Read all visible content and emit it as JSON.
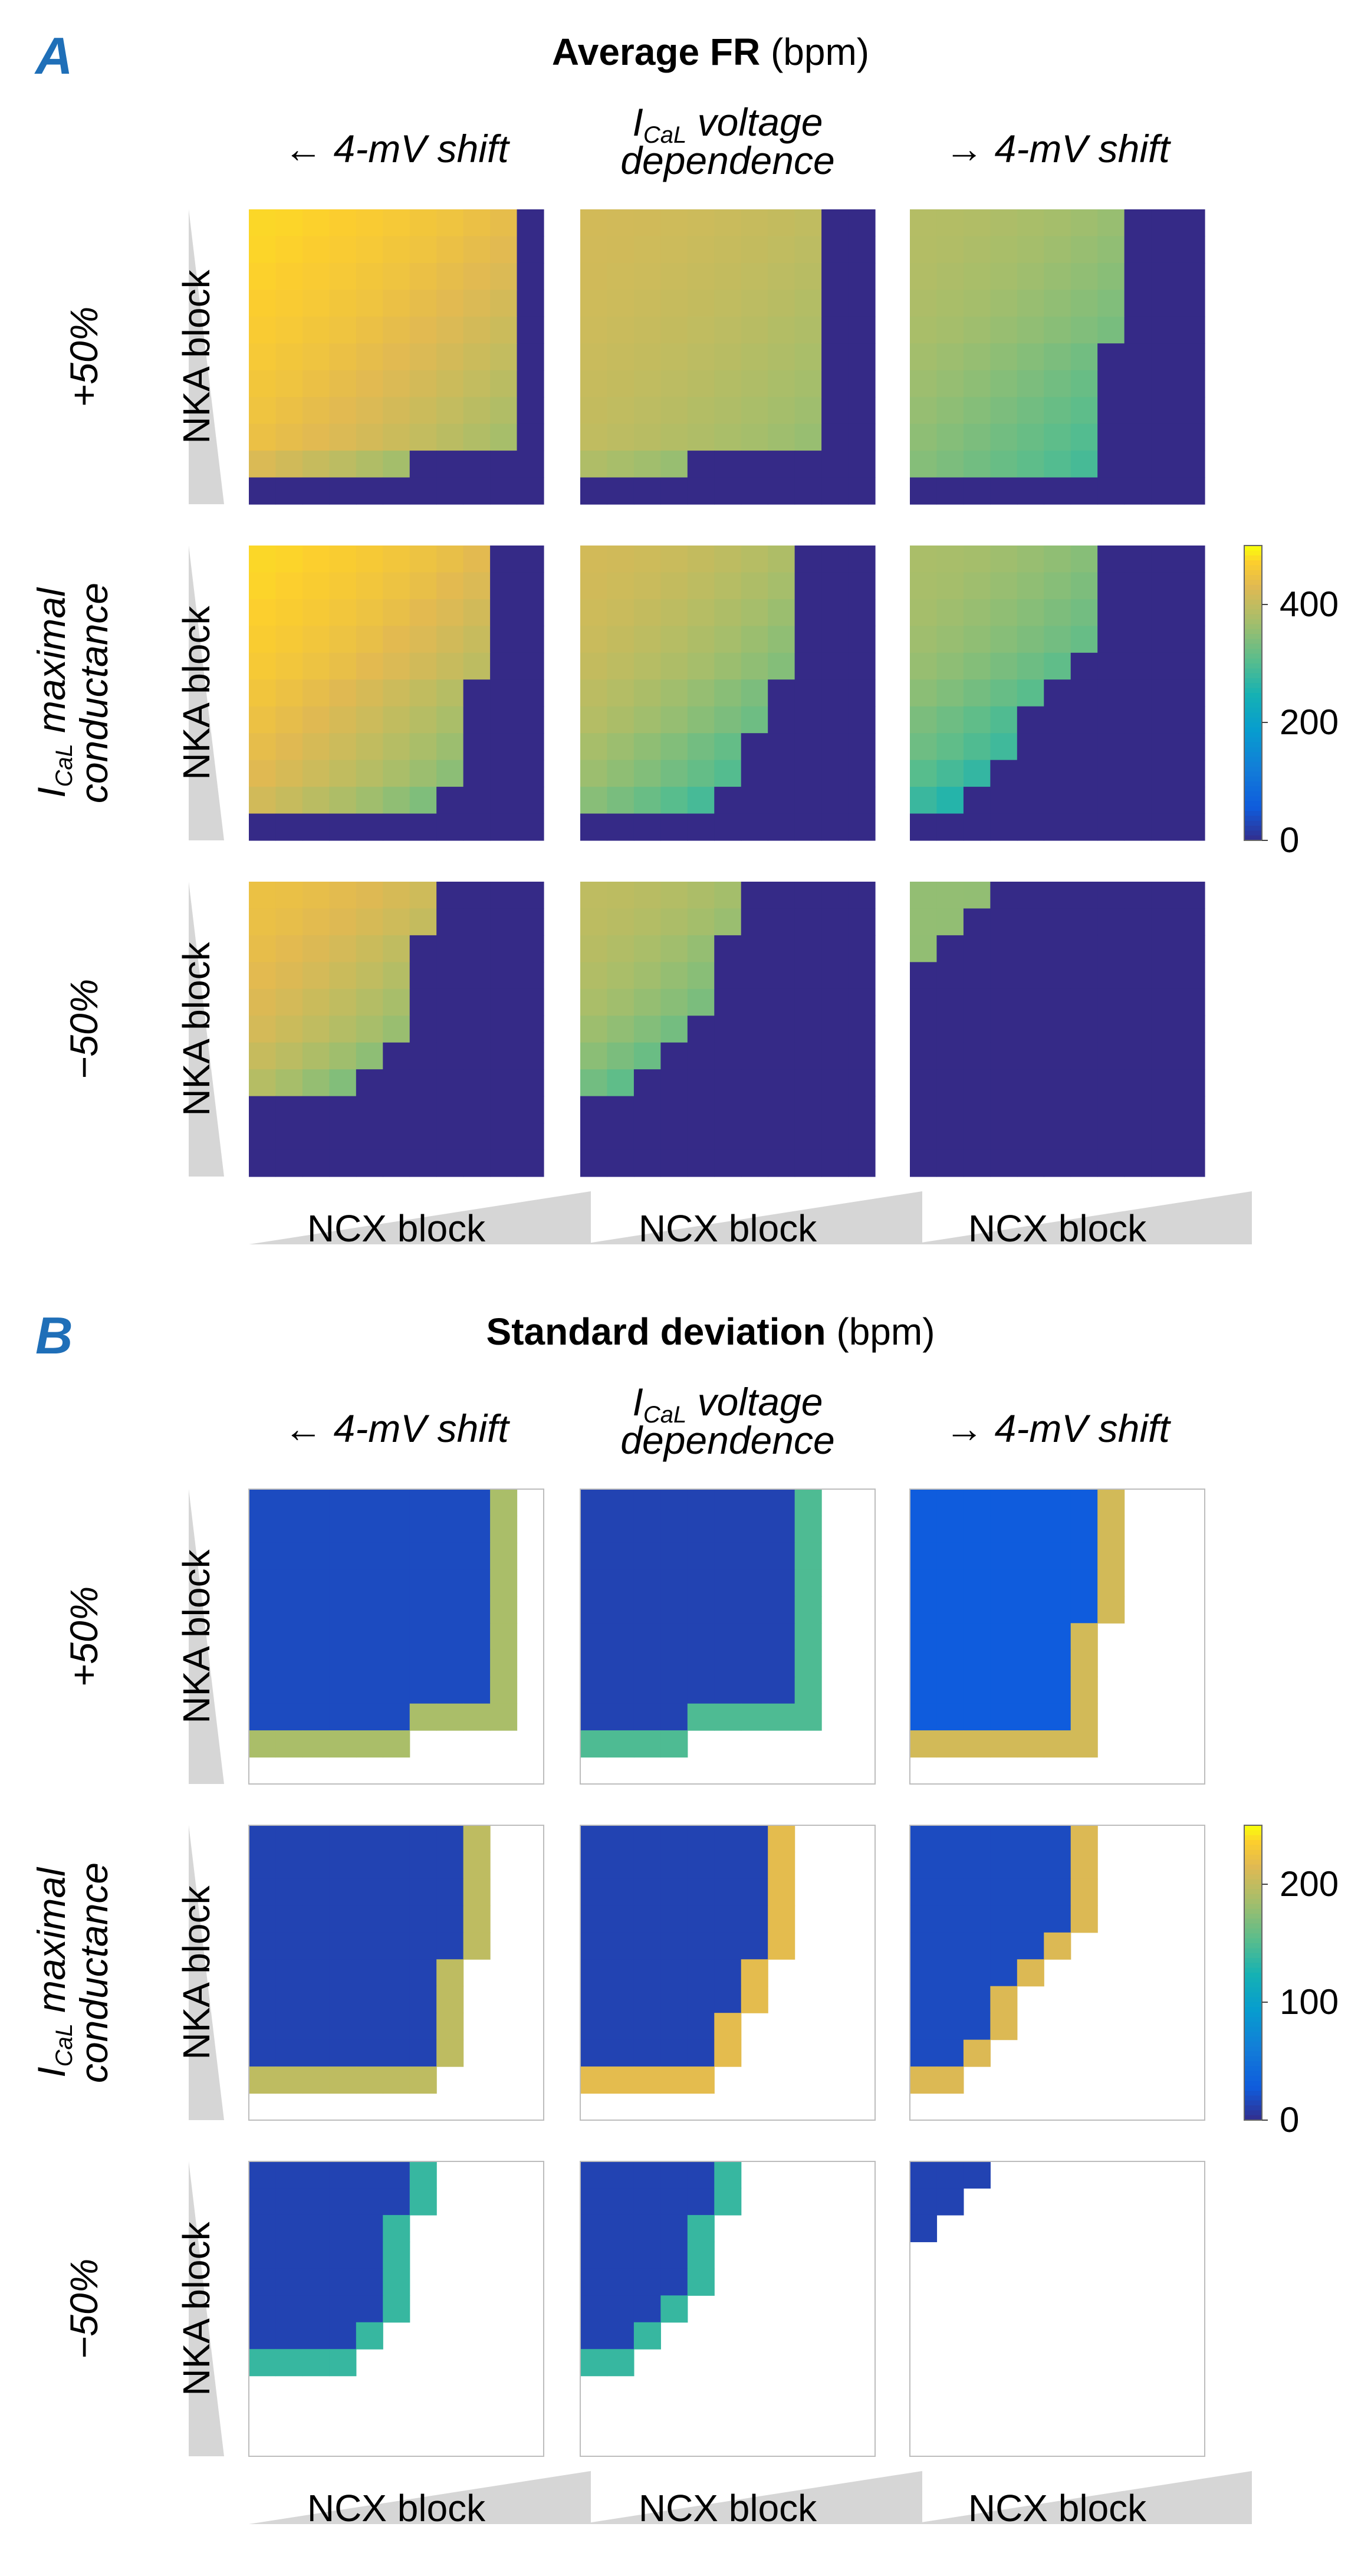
{
  "chart_data": [
    {
      "type": "heatmap",
      "panel_label": "A",
      "title_bold": "Average FR",
      "title_unit": "(bpm)",
      "column_headers": [
        "← 4-mV shift",
        "I_CaL voltage dependence",
        "→ 4-mV shift"
      ],
      "column_header_middle": {
        "base": "I",
        "sub": "CaL",
        "rest": " voltage",
        "line2": "dependence"
      },
      "row_headers": [
        "+50%",
        "I_CaL maximal conductance",
        "−50%"
      ],
      "row_header_middle": {
        "base": "I",
        "sub": "CaL",
        "rest": " maximal",
        "line2": "conductance"
      },
      "xlabel": "NCX block",
      "ylabel": "NKA block",
      "colorbar": {
        "range": [
          0,
          500
        ],
        "ticks": [
          0,
          200,
          400
        ]
      },
      "grid_size": [
        11,
        11
      ],
      "background_value": 0,
      "panels": [
        [
          {
            "thresholds": [
              10,
              10,
              10,
              10,
              10,
              10,
              10,
              10,
              10,
              6,
              0,
              0,
              0,
              0,
              0,
              0,
              0,
              0,
              0,
              0,
              0
            ],
            "peak": 480,
            "edge": 300
          },
          {
            "thresholds": [
              9,
              9,
              9,
              9,
              9,
              9,
              9,
              9,
              9,
              4,
              0,
              0,
              0,
              0,
              0,
              0,
              0,
              0,
              0,
              0,
              0
            ],
            "peak": 420,
            "edge": 320
          },
          {
            "thresholds": [
              8,
              8,
              8,
              8,
              8,
              7,
              7,
              7,
              7,
              7,
              0,
              0,
              0,
              0,
              0,
              0,
              0,
              0,
              0,
              0,
              0
            ],
            "peak": 390,
            "edge": 230
          }
        ],
        [
          {
            "thresholds": [
              9,
              9,
              9,
              9,
              9,
              8,
              8,
              8,
              8,
              7,
              0,
              0,
              0,
              0,
              0,
              0,
              0,
              0,
              0,
              0,
              0
            ],
            "peak": 480,
            "edge": 250
          },
          {
            "thresholds": [
              8,
              8,
              8,
              8,
              8,
              7,
              7,
              6,
              6,
              5,
              0,
              0,
              0,
              0,
              0,
              0,
              0,
              0,
              0,
              0,
              0
            ],
            "peak": 420,
            "edge": 200
          },
          {
            "thresholds": [
              7,
              7,
              7,
              7,
              6,
              5,
              4,
              4,
              3,
              2,
              0,
              0,
              0,
              0,
              0,
              0,
              0,
              0,
              0,
              0,
              0
            ],
            "peak": 380,
            "edge": 160
          }
        ],
        [
          {
            "thresholds": [
              7,
              7,
              6,
              6,
              6,
              6,
              5,
              4,
              0,
              0,
              0,
              0,
              0,
              0,
              0,
              0,
              0,
              0,
              0,
              0,
              0
            ],
            "peak": 450,
            "edge": 200
          },
          {
            "thresholds": [
              6,
              6,
              5,
              5,
              5,
              4,
              3,
              2,
              0,
              0,
              0,
              0,
              0,
              0,
              0,
              0,
              0,
              0,
              0,
              0,
              0
            ],
            "peak": 400,
            "edge": 170
          },
          {
            "thresholds": [
              3,
              2,
              1,
              0,
              0,
              0,
              0,
              0,
              0,
              0,
              0,
              0,
              0,
              0,
              0,
              0,
              0,
              0,
              0,
              0,
              0
            ],
            "peak": 360,
            "edge": 330
          }
        ]
      ]
    },
    {
      "type": "heatmap",
      "panel_label": "B",
      "title_bold": "Standard deviation",
      "title_unit": "(bpm)",
      "column_headers": [
        "← 4-mV shift",
        "I_CaL voltage dependence",
        "→ 4-mV shift"
      ],
      "column_header_middle": {
        "base": "I",
        "sub": "CaL",
        "rest": " voltage",
        "line2": "dependence"
      },
      "row_headers": [
        "+50%",
        "I_CaL maximal conductance",
        "−50%"
      ],
      "row_header_middle": {
        "base": "I",
        "sub": "CaL",
        "rest": " maximal",
        "line2": "conductance"
      },
      "xlabel": "NCX block",
      "ylabel": "NKA block",
      "colorbar": {
        "range": [
          0,
          250
        ],
        "ticks": [
          0,
          100,
          200
        ]
      },
      "grid_size": [
        11,
        11
      ],
      "background_value": null,
      "panels": [
        [
          {
            "thresholds": [
              10,
              10,
              10,
              10,
              10,
              10,
              10,
              10,
              10,
              6,
              0,
              0,
              0,
              0,
              0,
              0,
              0,
              0,
              0,
              0,
              0
            ],
            "low": 20,
            "edgeval": 190
          },
          {
            "thresholds": [
              9,
              9,
              9,
              9,
              9,
              9,
              9,
              9,
              9,
              4,
              0,
              0,
              0,
              0,
              0,
              0,
              0,
              0,
              0,
              0,
              0
            ],
            "low": 15,
            "edgeval": 150
          },
          {
            "thresholds": [
              8,
              8,
              8,
              8,
              8,
              7,
              7,
              7,
              7,
              7,
              0,
              0,
              0,
              0,
              0,
              0,
              0,
              0,
              0,
              0,
              0
            ],
            "low": 30,
            "edgeval": 210
          }
        ],
        [
          {
            "thresholds": [
              9,
              9,
              9,
              9,
              9,
              8,
              8,
              8,
              8,
              7,
              0,
              0,
              0,
              0,
              0,
              0,
              0,
              0,
              0,
              0,
              0
            ],
            "low": 15,
            "edgeval": 200
          },
          {
            "thresholds": [
              8,
              8,
              8,
              8,
              8,
              7,
              7,
              6,
              6,
              5,
              0,
              0,
              0,
              0,
              0,
              0,
              0,
              0,
              0,
              0,
              0
            ],
            "low": 15,
            "edgeval": 220
          },
          {
            "thresholds": [
              7,
              7,
              7,
              7,
              6,
              5,
              4,
              4,
              3,
              2,
              0,
              0,
              0,
              0,
              0,
              0,
              0,
              0,
              0,
              0,
              0
            ],
            "low": 20,
            "edgeval": 215
          }
        ],
        [
          {
            "thresholds": [
              7,
              7,
              6,
              6,
              6,
              6,
              5,
              4,
              0,
              0,
              0,
              0,
              0,
              0,
              0,
              0,
              0,
              0,
              0,
              0,
              0
            ],
            "low": 15,
            "edgeval": 140
          },
          {
            "thresholds": [
              6,
              6,
              5,
              5,
              5,
              4,
              3,
              2,
              0,
              0,
              0,
              0,
              0,
              0,
              0,
              0,
              0,
              0,
              0,
              0,
              0
            ],
            "low": 15,
            "edgeval": 140
          },
          {
            "thresholds": [
              3,
              2,
              1,
              0,
              0,
              0,
              0,
              0,
              0,
              0,
              0,
              0,
              0,
              0,
              0,
              0,
              0,
              0,
              0,
              0,
              0
            ],
            "low": 15,
            "edgeval": 15
          }
        ]
      ]
    }
  ]
}
